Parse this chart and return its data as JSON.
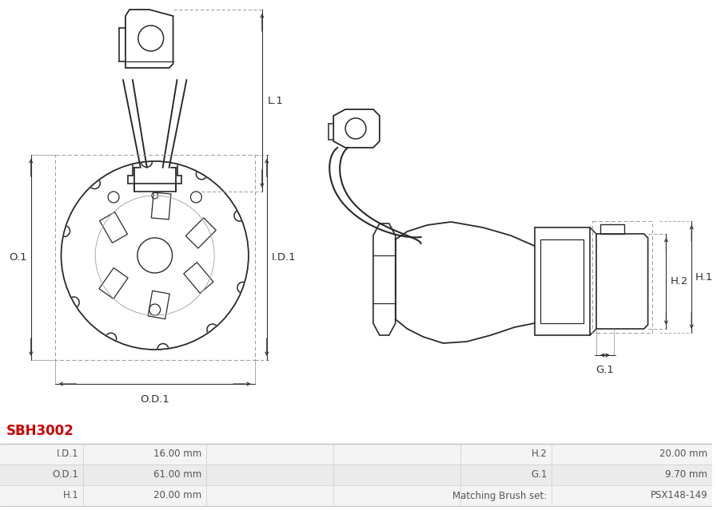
{
  "title": "SBH3002",
  "title_color": "#cc0000",
  "background_color": "#ffffff",
  "table_rows": [
    [
      "I.D.1",
      "16.00 mm",
      "H.2",
      "20.00 mm"
    ],
    [
      "O.D.1",
      "61.00 mm",
      "G.1",
      "9.70 mm"
    ],
    [
      "H.1",
      "20.00 mm",
      "Matching Brush set:",
      "PSX148-149"
    ]
  ],
  "table_row_bg": [
    "#f4f4f4",
    "#ebebeb",
    "#f4f4f4"
  ],
  "table_border_color": "#cccccc",
  "text_color": "#555555",
  "line_color": "#2a2a2a",
  "dim_color": "#333333",
  "dim_dash_color": "#888888"
}
